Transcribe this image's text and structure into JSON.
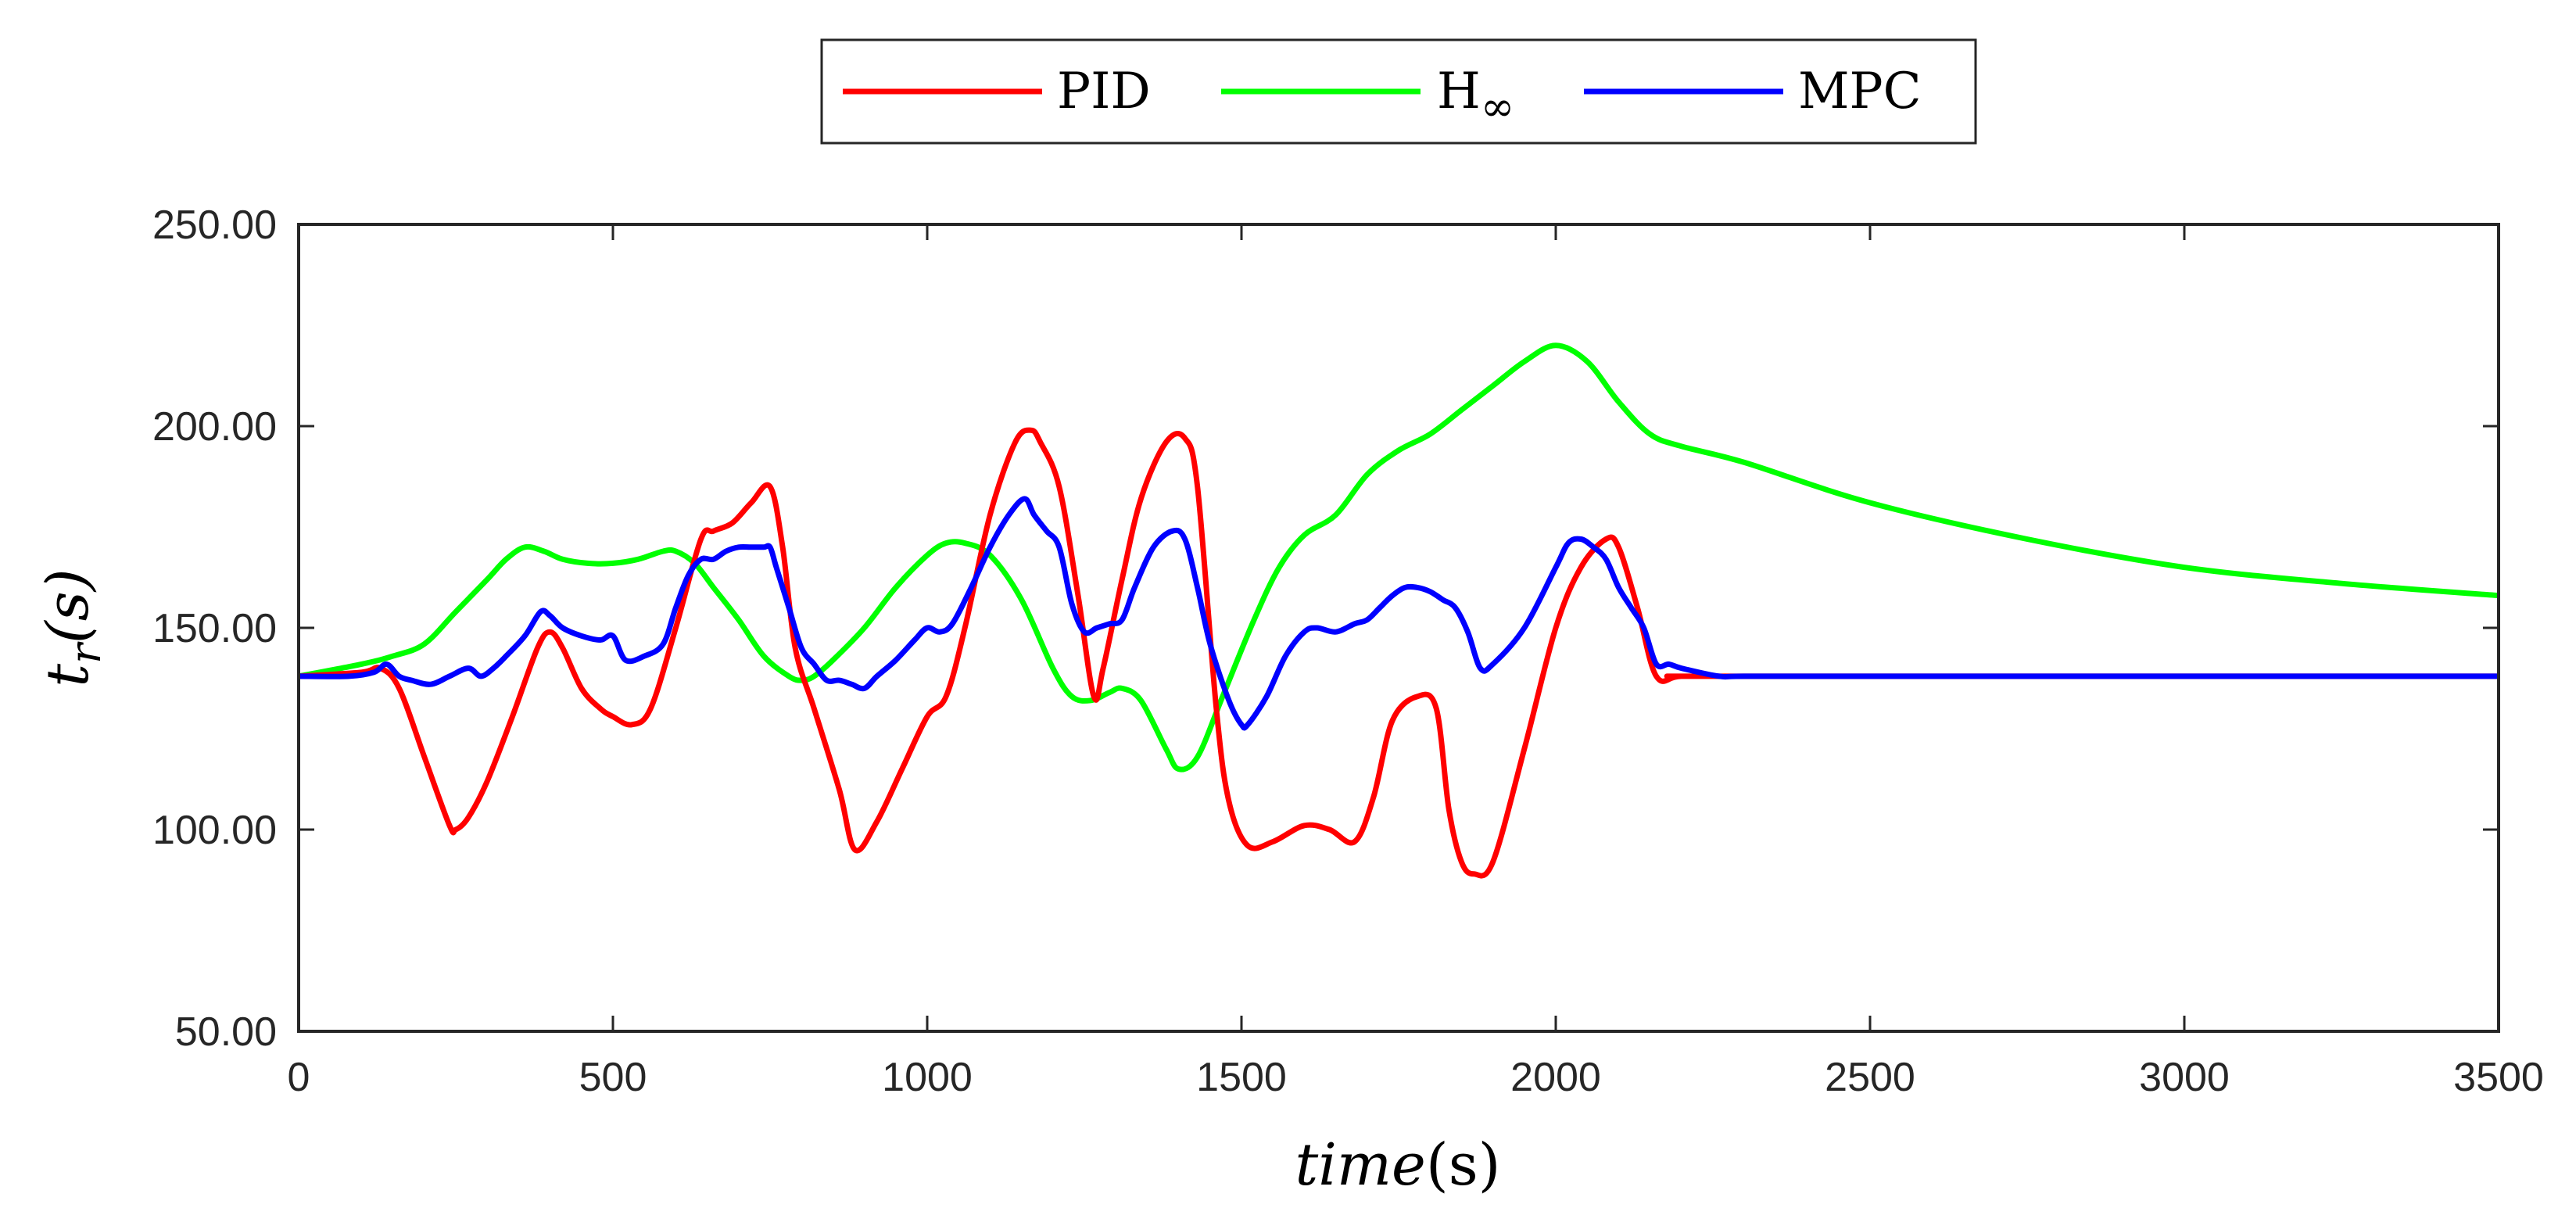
{
  "chart_data": {
    "type": "line",
    "xlabel": {
      "italic": "time",
      "unit": "(s)"
    },
    "ylabel": {
      "main": "t",
      "sub": "r",
      "unit": "(s)"
    },
    "xlim": [
      0,
      3500
    ],
    "ylim": [
      50,
      250
    ],
    "xticks": [
      0,
      500,
      1000,
      1500,
      2000,
      2500,
      3000,
      3500
    ],
    "xtick_labels": [
      "0",
      "500",
      "1000",
      "1500",
      "2000",
      "2500",
      "3000",
      "3500"
    ],
    "yticks": [
      50,
      100,
      150,
      200,
      250
    ],
    "ytick_labels": [
      "50.00",
      "100.00",
      "150.00",
      "200.00",
      "250.00"
    ],
    "legend": {
      "position": "top-center-outside",
      "entries": [
        {
          "series": 0,
          "label": "PID"
        },
        {
          "series": 1,
          "label_main": "H",
          "label_sub": "∞"
        },
        {
          "series": 2,
          "label": "MPC"
        }
      ]
    },
    "series": [
      {
        "name": "PID",
        "color": "#ff0000",
        "x": [
          0,
          100,
          130,
          160,
          200,
          240,
          250,
          270,
          300,
          340,
          380,
          400,
          420,
          450,
          480,
          500,
          530,
          560,
          600,
          640,
          660,
          690,
          720,
          750,
          770,
          790,
          820,
          860,
          885,
          920,
          960,
          1000,
          1030,
          1060,
          1100,
          1140,
          1165,
          1180,
          1210,
          1240,
          1265,
          1280,
          1310,
          1340,
          1380,
          1410,
          1430,
          1460,
          1480,
          1510,
          1550,
          1600,
          1640,
          1680,
          1710,
          1740,
          1780,
          1810,
          1830,
          1850,
          1870,
          1900,
          1950,
          2000,
          2040,
          2080,
          2100,
          2130,
          2160,
          2200,
          2300,
          3500
        ],
        "y": [
          138,
          139,
          140,
          135,
          118,
          101,
          100,
          103,
          112,
          128,
          145,
          149,
          145,
          135,
          130,
          128,
          126,
          130,
          150,
          172,
          174,
          176,
          181,
          185,
          170,
          145,
          130,
          110,
          95,
          102,
          115,
          128,
          133,
          150,
          178,
          196,
          199,
          196,
          185,
          158,
          133,
          140,
          162,
          182,
          196,
          197,
          185,
          130,
          107,
          96,
          97,
          101,
          100,
          97,
          108,
          127,
          133,
          130,
          105,
          92,
          89,
          92,
          120,
          150,
          165,
          172,
          170,
          155,
          138,
          138,
          138,
          138
        ]
      },
      {
        "name": "H∞",
        "color": "#00ff00",
        "x": [
          0,
          100,
          150,
          200,
          250,
          300,
          330,
          360,
          390,
          420,
          460,
          500,
          540,
          580,
          600,
          630,
          660,
          700,
          740,
          780,
          800,
          820,
          850,
          900,
          950,
          1000,
          1030,
          1060,
          1100,
          1150,
          1200,
          1230,
          1260,
          1290,
          1310,
          1340,
          1380,
          1400,
          1430,
          1470,
          1520,
          1560,
          1600,
          1650,
          1700,
          1750,
          1800,
          1850,
          1900,
          1950,
          2000,
          2050,
          2100,
          2150,
          2200,
          2300,
          2500,
          2750,
          3000,
          3250,
          3500
        ],
        "y": [
          138,
          141,
          143,
          146,
          154,
          162,
          167,
          170,
          169,
          167,
          166,
          166,
          167,
          169,
          169,
          166,
          160,
          152,
          143,
          138,
          137,
          138,
          142,
          150,
          160,
          168,
          171,
          171,
          168,
          157,
          140,
          133,
          132,
          134,
          135,
          132,
          120,
          115,
          118,
          133,
          152,
          165,
          173,
          178,
          188,
          194,
          198,
          204,
          210,
          216,
          220,
          216,
          206,
          198,
          195,
          191,
          181,
          172,
          165,
          161,
          158
        ]
      },
      {
        "name": "MPC",
        "color": "#0000ff",
        "x": [
          0,
          80,
          120,
          140,
          160,
          180,
          210,
          240,
          270,
          290,
          310,
          330,
          360,
          385,
          400,
          420,
          450,
          480,
          500,
          520,
          550,
          580,
          600,
          620,
          640,
          660,
          680,
          700,
          720,
          740,
          750,
          760,
          780,
          800,
          820,
          840,
          860,
          880,
          900,
          920,
          950,
          980,
          1000,
          1020,
          1040,
          1070,
          1100,
          1130,
          1155,
          1170,
          1190,
          1210,
          1230,
          1250,
          1270,
          1290,
          1310,
          1330,
          1360,
          1390,
          1410,
          1430,
          1450,
          1480,
          1500,
          1510,
          1540,
          1570,
          1600,
          1620,
          1650,
          1680,
          1700,
          1720,
          1740,
          1760,
          1780,
          1800,
          1820,
          1840,
          1860,
          1880,
          1900,
          1950,
          2000,
          2020,
          2040,
          2060,
          2080,
          2100,
          2120,
          2140,
          2160,
          2180,
          2200,
          2260,
          2300,
          2500,
          3500
        ],
        "y": [
          138,
          138,
          139,
          141,
          138,
          137,
          136,
          138,
          140,
          138,
          140,
          143,
          148,
          154,
          153,
          150,
          148,
          147,
          148,
          142,
          143,
          146,
          155,
          163,
          167,
          167,
          169,
          170,
          170,
          170,
          170,
          165,
          155,
          145,
          141,
          137,
          137,
          136,
          135,
          138,
          142,
          147,
          150,
          149,
          151,
          160,
          170,
          178,
          182,
          178,
          174,
          170,
          156,
          149,
          150,
          151,
          152,
          160,
          170,
          174,
          172,
          160,
          146,
          132,
          126,
          126,
          133,
          143,
          149,
          150,
          149,
          151,
          152,
          155,
          158,
          160,
          160,
          159,
          157,
          155,
          149,
          140,
          141,
          150,
          165,
          171,
          172,
          170,
          167,
          160,
          155,
          150,
          141,
          141,
          140,
          138,
          138,
          138,
          138
        ]
      }
    ]
  }
}
